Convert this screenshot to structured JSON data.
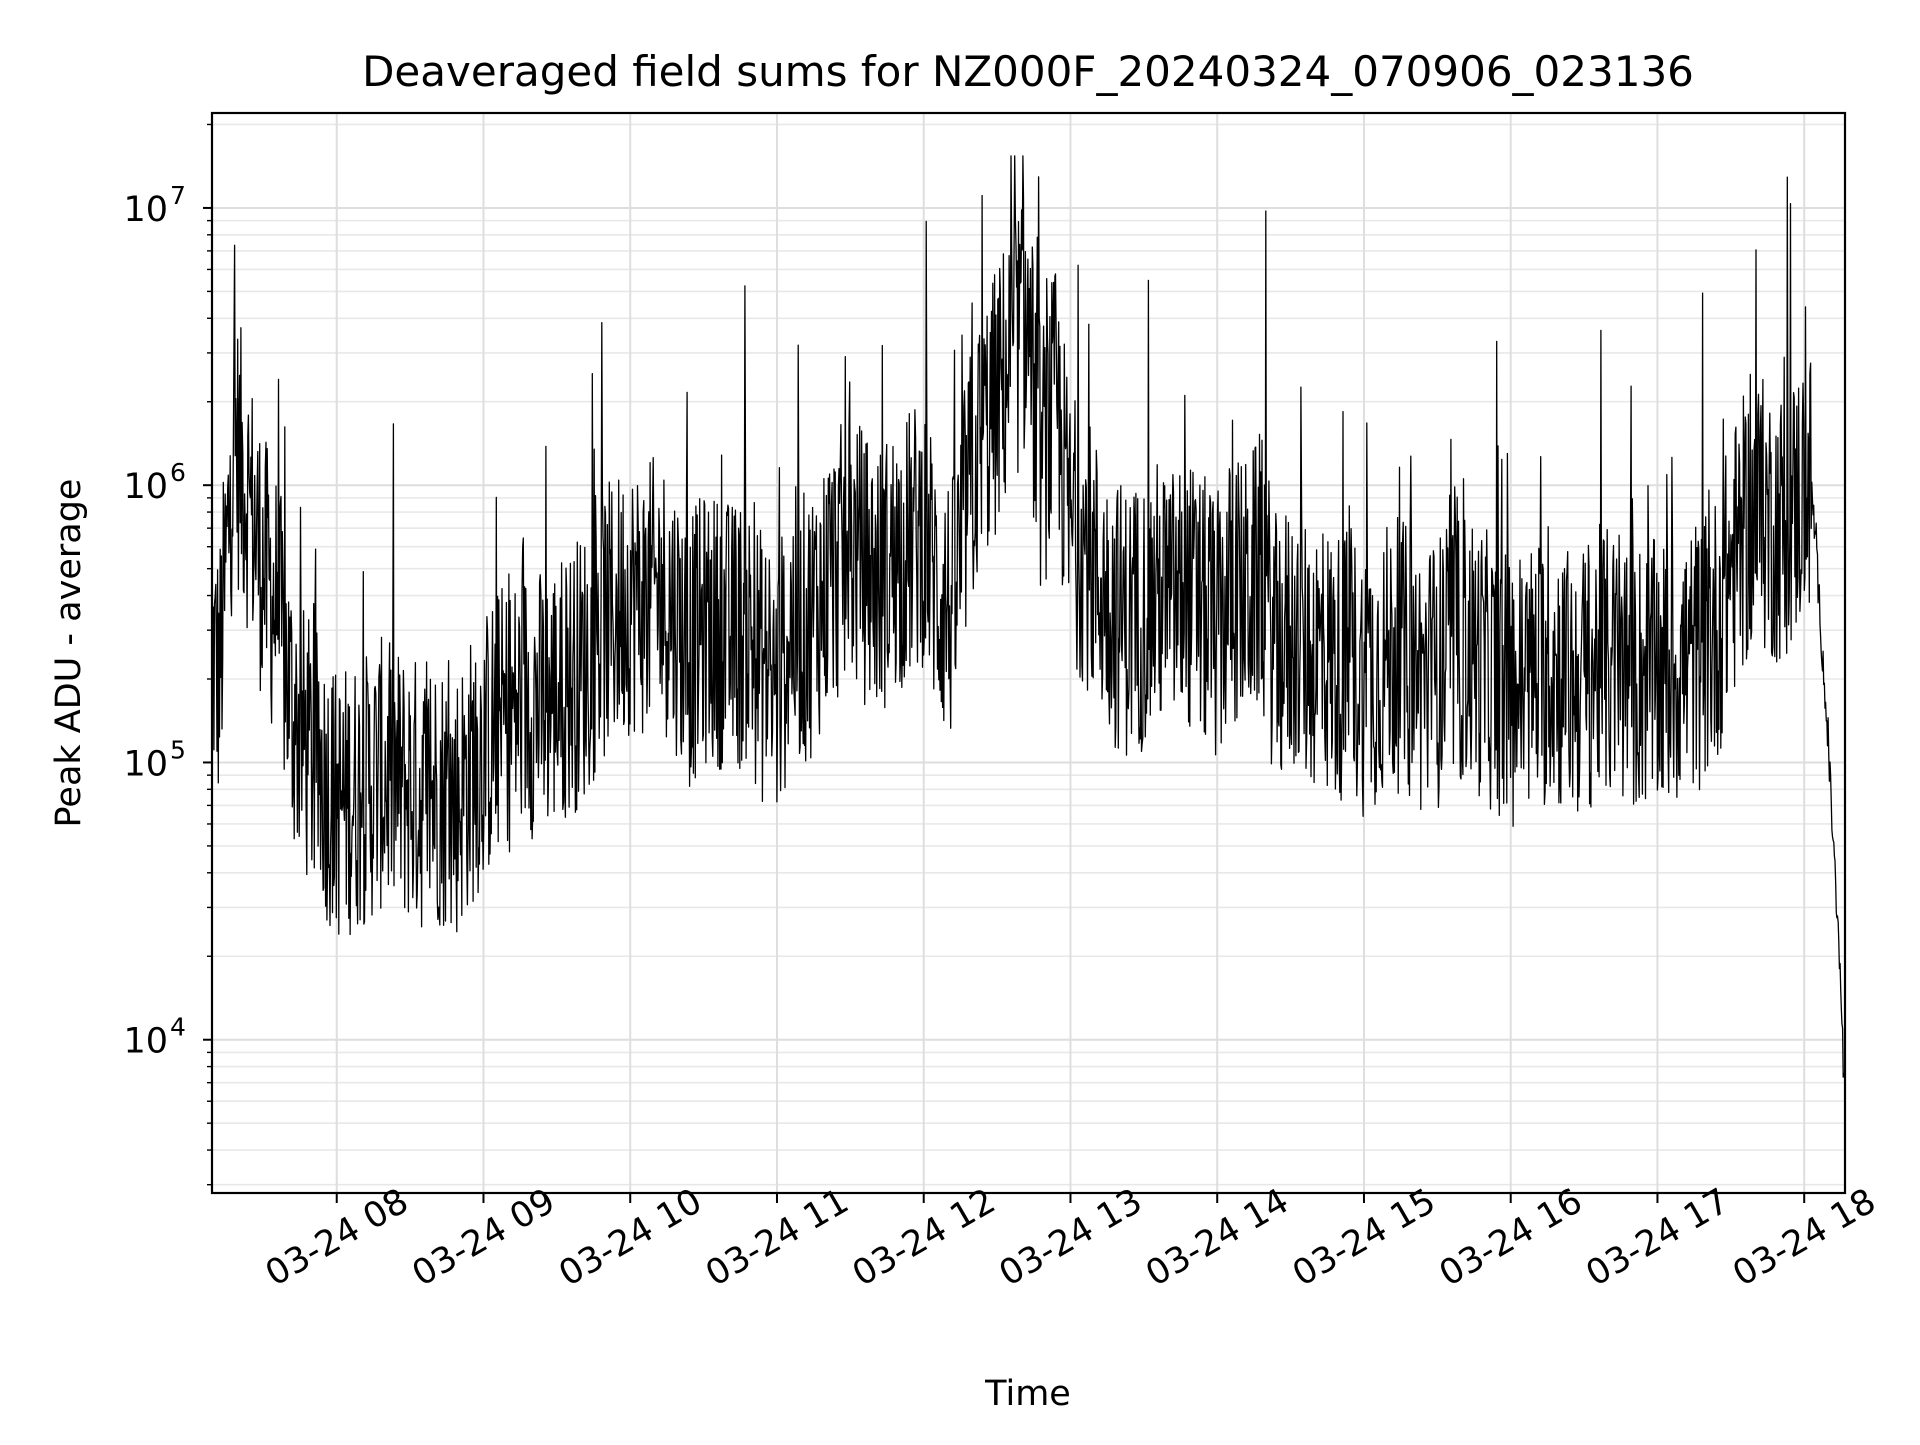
{
  "chart_data": {
    "type": "line",
    "title": "Deaveraged field sums for NZ000F_20240324_070906_023136",
    "xlabel": "Time",
    "ylabel": "Peak ADU - average",
    "yscale": "log",
    "ylim": [
      2800,
      22000000
    ],
    "xlim": [
      "03-24 07:09",
      "03-24 18:16"
    ],
    "grid": true,
    "x_ticks": [
      "03-24 08",
      "03-24 09",
      "03-24 10",
      "03-24 11",
      "03-24 12",
      "03-24 13",
      "03-24 14",
      "03-24 15",
      "03-24 16",
      "03-24 17",
      "03-24 18"
    ],
    "x_tick_hours": [
      8,
      9,
      10,
      11,
      12,
      13,
      14,
      15,
      16,
      17,
      18
    ],
    "y_ticks": [
      {
        "base": "10",
        "exp": "4",
        "value": 10000
      },
      {
        "base": "10",
        "exp": "5",
        "value": 100000
      },
      {
        "base": "10",
        "exp": "6",
        "value": 1000000
      },
      {
        "base": "10",
        "exp": "7",
        "value": 10000000
      }
    ],
    "series": [
      {
        "color": "#000000",
        "x_hours": [
          7.15,
          7.2,
          7.3,
          7.4,
          7.5,
          7.6,
          7.7,
          7.8,
          7.9,
          8.0,
          8.1,
          8.2,
          8.3,
          8.4,
          8.5,
          8.6,
          8.7,
          8.8,
          8.9,
          9.0,
          9.1,
          9.2,
          9.3,
          9.4,
          9.5,
          9.6,
          9.7,
          9.8,
          9.9,
          10.0,
          10.1,
          10.2,
          10.3,
          10.4,
          10.5,
          10.6,
          10.7,
          10.8,
          10.9,
          11.0,
          11.1,
          11.2,
          11.3,
          11.4,
          11.5,
          11.6,
          11.7,
          11.8,
          11.9,
          12.0,
          12.1,
          12.2,
          12.3,
          12.4,
          12.5,
          12.6,
          12.7,
          12.8,
          12.9,
          13.0,
          13.1,
          13.2,
          13.3,
          13.4,
          13.5,
          13.6,
          13.7,
          13.8,
          13.9,
          14.0,
          14.1,
          14.2,
          14.3,
          14.4,
          14.5,
          14.6,
          14.7,
          14.8,
          14.9,
          15.0,
          15.1,
          15.2,
          15.3,
          15.4,
          15.5,
          15.6,
          15.7,
          15.8,
          15.9,
          16.0,
          16.1,
          16.2,
          16.3,
          16.4,
          16.5,
          16.6,
          16.7,
          16.8,
          16.9,
          17.0,
          17.1,
          17.2,
          17.3,
          17.4,
          17.5,
          17.6,
          17.7,
          17.8,
          17.9,
          18.0,
          18.05,
          18.1,
          18.15,
          18.2,
          18.25,
          18.27
        ],
        "values": [
          250000,
          200000,
          1500000,
          900000,
          500000,
          350000,
          150000,
          110000,
          90000,
          70000,
          75000,
          80000,
          90000,
          85000,
          80000,
          75000,
          80000,
          70000,
          90000,
          110000,
          140000,
          150000,
          170000,
          160000,
          180000,
          200000,
          230000,
          300000,
          350000,
          400000,
          380000,
          420000,
          350000,
          250000,
          300000,
          300000,
          280000,
          300000,
          220000,
          180000,
          320000,
          300000,
          400000,
          500000,
          600000,
          500000,
          450000,
          550000,
          600000,
          700000,
          400000,
          350000,
          900000,
          1500000,
          2000000,
          3000000,
          4000000,
          1200000,
          2000000,
          700000,
          600000,
          450000,
          350000,
          320000,
          350000,
          400000,
          380000,
          400000,
          350000,
          300000,
          420000,
          400000,
          500000,
          250000,
          280000,
          250000,
          250000,
          220000,
          230000,
          200000,
          220000,
          250000,
          230000,
          200000,
          210000,
          250000,
          260000,
          230000,
          200000,
          180000,
          200000,
          210000,
          220000,
          190000,
          200000,
          230000,
          220000,
          200000,
          210000,
          200000,
          210000,
          230000,
          250000,
          300000,
          500000,
          700000,
          800000,
          700000,
          750000,
          1000000,
          1000000,
          400000,
          150000,
          50000,
          15000,
          7000
        ]
      }
    ]
  }
}
